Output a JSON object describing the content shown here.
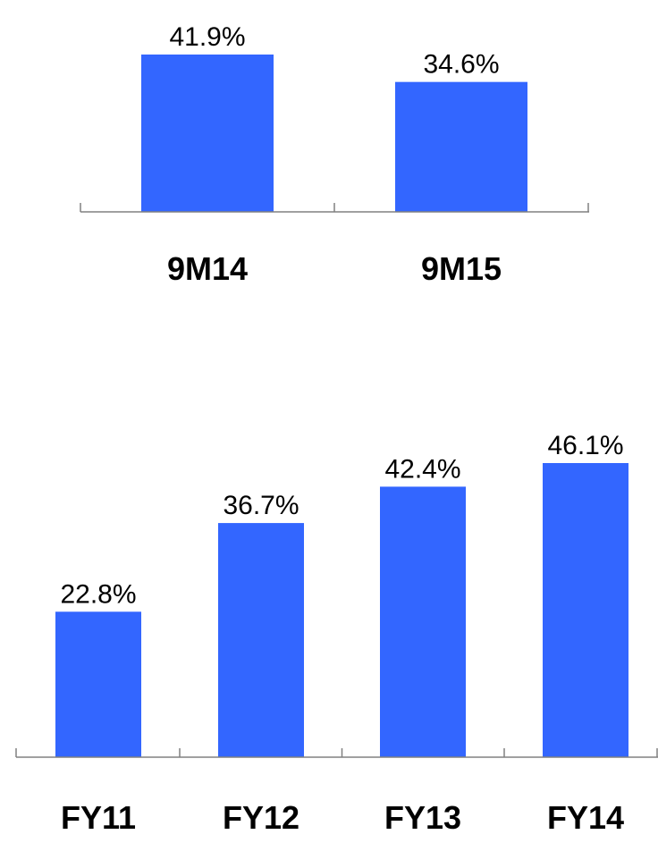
{
  "chart_data": [
    {
      "type": "bar",
      "title": "",
      "xlabel": "",
      "ylabel": "",
      "categories": [
        "9M14",
        "9M15"
      ],
      "values": [
        41.9,
        34.6
      ],
      "value_labels": [
        "41.9%",
        "34.6%"
      ],
      "ylim": [
        0,
        41.9
      ],
      "grid": false,
      "legend": "none",
      "bar_color": "#3366FF"
    },
    {
      "type": "bar",
      "title": "",
      "xlabel": "",
      "ylabel": "",
      "categories": [
        "FY11",
        "FY12",
        "FY13",
        "FY14"
      ],
      "values": [
        22.8,
        36.7,
        42.4,
        46.1
      ],
      "value_labels": [
        "22.8%",
        "36.7%",
        "42.4%",
        "46.1%"
      ],
      "ylim": [
        0,
        46.1
      ],
      "grid": false,
      "legend": "none",
      "bar_color": "#3366FF"
    }
  ]
}
